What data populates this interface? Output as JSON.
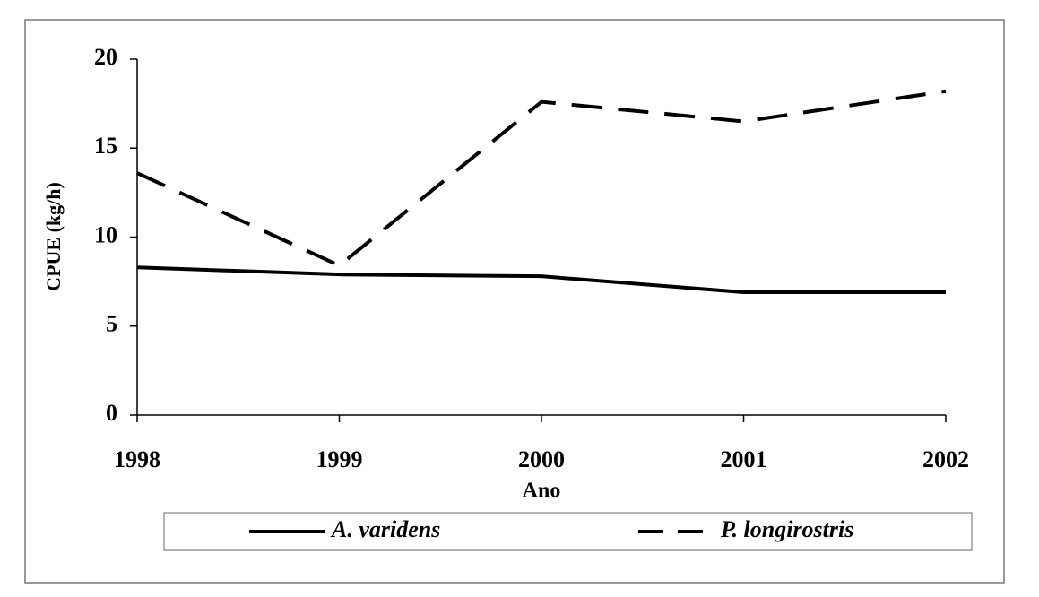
{
  "chart_data": {
    "type": "line",
    "x": [
      1998,
      1999,
      2000,
      2001,
      2002
    ],
    "xlim": [
      1998,
      2002
    ],
    "xticks": [
      1998,
      1999,
      2000,
      2001,
      2002
    ],
    "ylim": [
      0,
      20
    ],
    "yticks": [
      0,
      5,
      10,
      15,
      20
    ],
    "xlabel": "Ano",
    "ylabel": "CPUE (kg/h)",
    "legend": "bottom",
    "series": [
      {
        "name": "A. varidens",
        "color": "#000000",
        "linestyle": "solid",
        "values": [
          8.3,
          7.9,
          7.8,
          6.9,
          6.9
        ]
      },
      {
        "name": "P. longirostris",
        "color": "#000000",
        "linestyle": "dashed",
        "values": [
          13.6,
          8.4,
          17.6,
          16.5,
          18.2
        ]
      }
    ]
  }
}
